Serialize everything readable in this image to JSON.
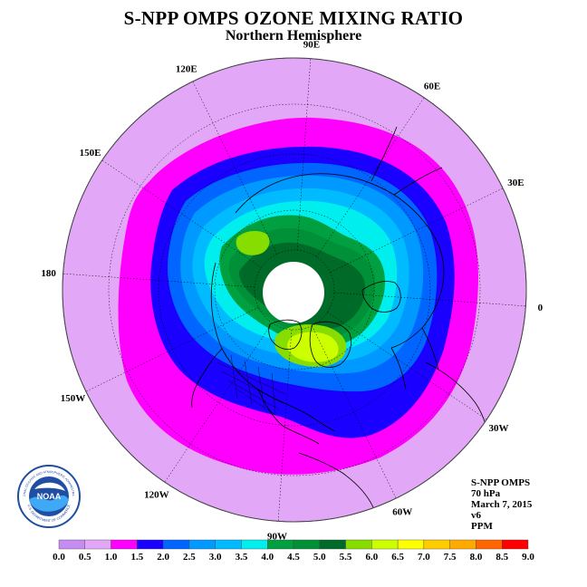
{
  "header": {
    "title": "S-NPP OMPS OZONE MIXING RATIO",
    "subtitle": "Northern Hemisphere"
  },
  "map": {
    "projection": "north polar stereographic",
    "longitude_labels": [
      {
        "text": "90E",
        "lon": 90
      },
      {
        "text": "60E",
        "lon": 60
      },
      {
        "text": "30E",
        "lon": 30
      },
      {
        "text": "0",
        "lon": 0
      },
      {
        "text": "30W",
        "lon": -30
      },
      {
        "text": "60W",
        "lon": -60
      },
      {
        "text": "90W",
        "lon": -90
      },
      {
        "text": "120W",
        "lon": -120
      },
      {
        "text": "150W",
        "lon": -150
      },
      {
        "text": "180",
        "lon": 180
      },
      {
        "text": "150E",
        "lon": 150
      },
      {
        "text": "120E",
        "lon": 120
      }
    ],
    "colors": {
      "background_ring": "#e2a8f7",
      "polar_night": "#ffffff"
    }
  },
  "info": {
    "product": "S-NPP OMPS",
    "pressure": "70 hPa",
    "date": "March 7, 2015",
    "version": "v6",
    "units": "PPM"
  },
  "logo": {
    "text": "NOAA",
    "arc_text": "NATIONAL OCEANIC AND ATMOSPHERIC ADMINISTRATION",
    "bottom_text": "U.S. DEPARTMENT OF COMMERCE"
  },
  "colorbar": {
    "labels": [
      "0.0",
      "0.5",
      "1.0",
      "1.5",
      "2.0",
      "2.5",
      "3.0",
      "3.5",
      "4.0",
      "4.5",
      "5.0",
      "5.5",
      "6.0",
      "6.5",
      "7.0",
      "7.5",
      "8.0",
      "8.5",
      "9.0"
    ],
    "colors": [
      "#c58cf2",
      "#e2a8f7",
      "#ff00ff",
      "#1a00ff",
      "#0066ff",
      "#0099ff",
      "#00bbff",
      "#00eeee",
      "#00a040",
      "#009038",
      "#006a28",
      "#88dd00",
      "#ccff00",
      "#ffff00",
      "#ffcc00",
      "#ffaa00",
      "#ff6600",
      "#ff0000",
      "#885533"
    ]
  }
}
